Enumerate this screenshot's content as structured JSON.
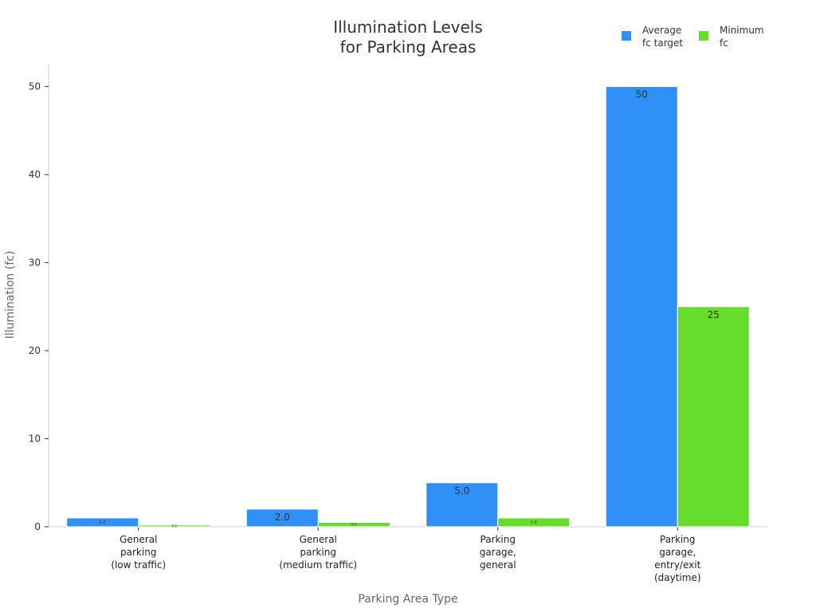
{
  "chart_data": {
    "type": "bar",
    "title": [
      "Illumination Levels",
      "for Parking Areas"
    ],
    "xlabel": "Parking Area Type",
    "ylabel": "Illumination (fc)",
    "ylim": [
      0,
      52.5
    ],
    "yticks": [
      0,
      10,
      20,
      30,
      40,
      50
    ],
    "grid": false,
    "legend_position": "top-right",
    "categories": [
      [
        "General",
        "parking",
        "(low traffic)"
      ],
      [
        "General",
        "parking",
        "(medium traffic)"
      ],
      [
        "Parking",
        "garage,",
        "general"
      ],
      [
        "Parking",
        "garage,",
        "entry/exit",
        "(daytime)"
      ]
    ],
    "series": [
      {
        "name": [
          "Average",
          "fc target"
        ],
        "color": "#2f91f5",
        "values": [
          1.0,
          2.0,
          5.0,
          50
        ],
        "labels": [
          "1.0",
          "2.0",
          "5.0",
          "50"
        ]
      },
      {
        "name": [
          "Minimum",
          "fc"
        ],
        "color": "#66dd2a",
        "values": [
          0.2,
          0.5,
          1.0,
          25
        ],
        "labels": [
          "0.2",
          "0.5",
          "1.0",
          "25"
        ]
      }
    ]
  }
}
